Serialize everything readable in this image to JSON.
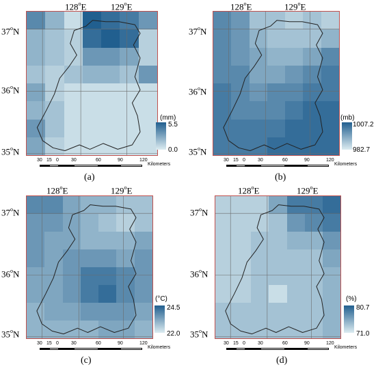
{
  "panels": [
    {
      "id": "a",
      "caption": "(a)",
      "unit": "(mm)",
      "legend_max": "5.5",
      "legend_min": "0.0",
      "grid_values": [
        [
          0.7,
          0.4,
          0.1,
          1.0,
          0.9,
          0.8,
          0.6
        ],
        [
          0.4,
          0.3,
          0.2,
          0.9,
          1.0,
          0.9,
          0.2
        ],
        [
          0.4,
          0.3,
          0.2,
          0.6,
          0.6,
          0.5,
          0.2
        ],
        [
          0.3,
          0.2,
          0.3,
          0.4,
          0.4,
          0.3,
          0.6
        ],
        [
          0.5,
          0.2,
          0.1,
          0.1,
          0.1,
          0.1,
          0.1
        ],
        [
          0.4,
          0.3,
          0.1,
          0.1,
          0.1,
          0.1,
          0.1
        ],
        [
          0.6,
          0.3,
          0.1,
          0.1,
          0.1,
          0.1,
          0.1
        ],
        [
          0.5,
          0.2,
          0.1,
          0.1,
          0.1,
          0.1,
          0.1
        ]
      ]
    },
    {
      "id": "b",
      "caption": "(b)",
      "unit": "(mb)",
      "legend_max": "1007.2",
      "legend_min": "982.7",
      "grid_values": [
        [
          0.7,
          0.6,
          0.3,
          0.3,
          0.2,
          0.3,
          0.2
        ],
        [
          0.7,
          0.6,
          0.4,
          0.3,
          0.3,
          0.3,
          0.4
        ],
        [
          0.7,
          0.6,
          0.5,
          0.4,
          0.4,
          0.5,
          0.7
        ],
        [
          0.7,
          0.7,
          0.5,
          0.5,
          0.6,
          0.7,
          0.8
        ],
        [
          0.8,
          0.7,
          0.6,
          0.7,
          0.7,
          0.8,
          0.8
        ],
        [
          0.8,
          0.7,
          0.7,
          0.7,
          0.8,
          0.9,
          0.9
        ],
        [
          0.8,
          0.8,
          0.8,
          0.8,
          0.9,
          0.9,
          0.9
        ],
        [
          0.8,
          0.8,
          0.8,
          0.9,
          0.9,
          0.9,
          0.9
        ]
      ]
    },
    {
      "id": "c",
      "caption": "(c)",
      "unit": "(°C)",
      "legend_max": "24.5",
      "legend_min": "22.0",
      "grid_values": [
        [
          0.7,
          0.7,
          0.5,
          0.4,
          0.4,
          0.3,
          0.3
        ],
        [
          0.6,
          0.6,
          0.5,
          0.4,
          0.3,
          0.2,
          0.3
        ],
        [
          0.6,
          0.5,
          0.5,
          0.4,
          0.4,
          0.4,
          0.5
        ],
        [
          0.6,
          0.5,
          0.6,
          0.6,
          0.6,
          0.5,
          0.6
        ],
        [
          0.5,
          0.5,
          0.6,
          0.8,
          0.8,
          0.7,
          0.6
        ],
        [
          0.5,
          0.5,
          0.6,
          0.8,
          0.9,
          0.7,
          0.6
        ],
        [
          0.4,
          0.5,
          0.5,
          0.6,
          0.6,
          0.6,
          0.5
        ],
        [
          0.4,
          0.4,
          0.4,
          0.4,
          0.5,
          0.5,
          0.4
        ]
      ]
    },
    {
      "id": "d",
      "caption": "(d)",
      "unit": "(%)",
      "legend_max": "80.7",
      "legend_min": "71.0",
      "grid_values": [
        [
          0.2,
          0.2,
          0.2,
          0.5,
          0.8,
          0.8,
          0.9
        ],
        [
          0.2,
          0.2,
          0.2,
          0.3,
          0.6,
          0.7,
          0.8
        ],
        [
          0.2,
          0.2,
          0.3,
          0.3,
          0.4,
          0.4,
          0.6
        ],
        [
          0.2,
          0.2,
          0.3,
          0.3,
          0.3,
          0.3,
          0.5
        ],
        [
          0.2,
          0.2,
          0.3,
          0.3,
          0.3,
          0.3,
          0.4
        ],
        [
          0.2,
          0.2,
          0.3,
          0.1,
          0.3,
          0.3,
          0.4
        ],
        [
          0.3,
          0.3,
          0.3,
          0.3,
          0.3,
          0.3,
          0.4
        ],
        [
          0.3,
          0.3,
          0.3,
          0.3,
          0.3,
          0.3,
          0.4
        ]
      ]
    }
  ],
  "axis": {
    "lon_label_1": "128",
    "lon_label_2": "129",
    "lon_suffix": "E",
    "lat_label_1": "37",
    "lat_label_2": "36",
    "lat_label_3": "35",
    "lat_suffix": "N",
    "degree_mark": "o"
  },
  "scale_bar": {
    "ticks": [
      "30",
      "15",
      "0",
      "30",
      "60",
      "90",
      "120"
    ],
    "units": "Kilometers"
  },
  "colors": {
    "ramp_light": "#dcecf1",
    "ramp_dark": "#215f8f",
    "frame": "#c0504d",
    "graticule": "#6a6a6a"
  }
}
